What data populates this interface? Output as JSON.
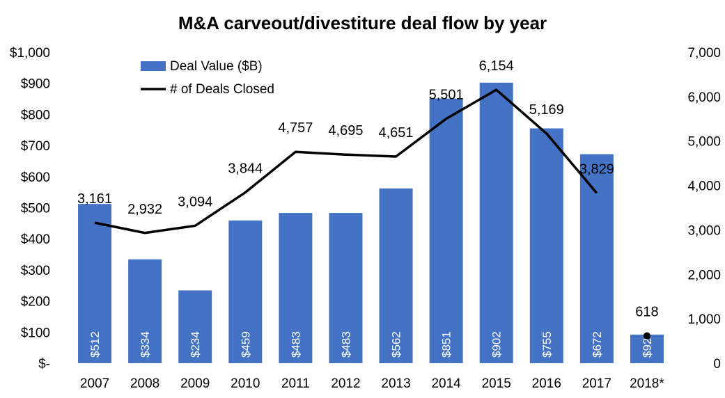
{
  "chart_data": {
    "type": "bar",
    "title": "M&A carveout/divestiture deal flow by year",
    "categories": [
      "2007",
      "2008",
      "2009",
      "2010",
      "2011",
      "2012",
      "2013",
      "2014",
      "2015",
      "2016",
      "2017",
      "2018*"
    ],
    "series": [
      {
        "name": "Deal Value ($B)",
        "type": "bar",
        "axis": "left",
        "values": [
          512,
          334,
          234,
          459,
          483,
          483,
          562,
          851,
          902,
          755,
          672,
          92
        ],
        "labels": [
          "$512",
          "$334",
          "$234",
          "$459",
          "$483",
          "$483",
          "$562",
          "$851",
          "$902",
          "$755",
          "$672",
          "$92"
        ],
        "color": "#4472C4"
      },
      {
        "name": "# of Deals Closed",
        "type": "line",
        "axis": "right",
        "values": [
          3161,
          2932,
          3094,
          3844,
          4757,
          4695,
          4651,
          5501,
          6154,
          5169,
          3829,
          618
        ],
        "labels": [
          "3,161",
          "2,932",
          "3,094",
          "3,844",
          "4,757",
          "4,695",
          "4,651",
          "5,501",
          "6,154",
          "5,169",
          "3,829",
          "618"
        ],
        "color": "#000000"
      }
    ],
    "ylim_left": [
      0,
      1000
    ],
    "ylim_right": [
      0,
      7000
    ],
    "yticks_left": [
      "$-",
      "$100",
      "$200",
      "$300",
      "$400",
      "$500",
      "$600",
      "$700",
      "$800",
      "$900",
      "$1,000"
    ],
    "yticks_right": [
      "0",
      "1,000",
      "2,000",
      "3,000",
      "4,000",
      "5,000",
      "6,000",
      "7,000"
    ],
    "legend": "top-left",
    "grid": false
  }
}
